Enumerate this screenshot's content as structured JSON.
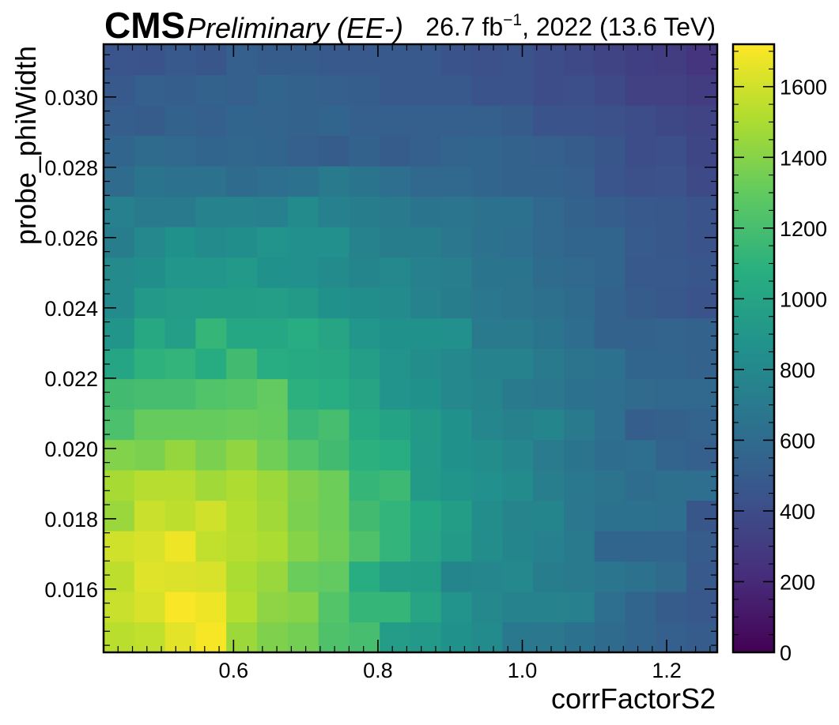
{
  "header": {
    "experiment": "CMS",
    "status": "Preliminary (EE-)",
    "lumi_value": "26.7 fb",
    "lumi_exponent": "−1",
    "lumi_suffix": ", 2022 (13.6 TeV)"
  },
  "chart_data": {
    "type": "heatmap",
    "xlabel": "corrFactorS2",
    "ylabel": "probe_phiWidth",
    "x_range": [
      0.42,
      1.27
    ],
    "y_range": [
      0.0142,
      0.0315
    ],
    "x_ticks": [
      "0.6",
      "0.8",
      "1.0",
      "1.2"
    ],
    "y_ticks": [
      "0.016",
      "0.018",
      "0.020",
      "0.022",
      "0.024",
      "0.026",
      "0.028",
      "0.030"
    ],
    "x_nbins": 20,
    "y_nbins": 20,
    "colorbar": {
      "colormap": "viridis",
      "range": [
        0,
        1720
      ],
      "ticks": [
        "0",
        "200",
        "400",
        "600",
        "800",
        "1000",
        "1200",
        "1400",
        "1600"
      ]
    },
    "z_rows_bottom_to_top": [
      [
        1540,
        1560,
        1650,
        1700,
        1460,
        1380,
        1350,
        1230,
        1200,
        940,
        920,
        860,
        820,
        690,
        680,
        640,
        600,
        560,
        520,
        500
      ],
      [
        1580,
        1620,
        1710,
        1680,
        1520,
        1420,
        1400,
        1250,
        1130,
        1130,
        1000,
        880,
        800,
        760,
        760,
        740,
        620,
        560,
        500,
        470
      ],
      [
        1550,
        1640,
        1630,
        1620,
        1500,
        1450,
        1320,
        1300,
        1060,
        960,
        950,
        780,
        790,
        800,
        720,
        700,
        670,
        640,
        590,
        480
      ],
      [
        1600,
        1620,
        1680,
        1560,
        1530,
        1500,
        1400,
        1340,
        1230,
        1120,
        1000,
        930,
        830,
        780,
        740,
        700,
        560,
        560,
        560,
        500
      ],
      [
        1450,
        1580,
        1550,
        1600,
        1520,
        1470,
        1370,
        1330,
        1180,
        1120,
        1020,
        950,
        830,
        770,
        780,
        680,
        640,
        640,
        620,
        460
      ],
      [
        1490,
        1530,
        1530,
        1470,
        1510,
        1460,
        1380,
        1330,
        1130,
        1160,
        930,
        890,
        850,
        820,
        730,
        690,
        650,
        610,
        630,
        620
      ],
      [
        1390,
        1370,
        1440,
        1370,
        1430,
        1340,
        1250,
        1180,
        1090,
        1060,
        920,
        860,
        830,
        790,
        710,
        660,
        610,
        620,
        550,
        520
      ],
      [
        1220,
        1310,
        1310,
        1310,
        1320,
        1310,
        1150,
        1200,
        1040,
        990,
        930,
        860,
        790,
        750,
        780,
        700,
        620,
        510,
        530,
        550
      ],
      [
        1180,
        1200,
        1200,
        1240,
        1260,
        1300,
        1090,
        1060,
        1000,
        880,
        870,
        800,
        770,
        700,
        680,
        640,
        620,
        590,
        580,
        580
      ],
      [
        1010,
        1100,
        1120,
        1050,
        1180,
        1060,
        1040,
        1030,
        960,
        880,
        830,
        800,
        760,
        760,
        700,
        650,
        640,
        560,
        560,
        540
      ],
      [
        890,
        1030,
        960,
        1130,
        1020,
        1020,
        1060,
        1000,
        900,
        860,
        860,
        850,
        700,
        700,
        660,
        610,
        540,
        540,
        550,
        540
      ],
      [
        820,
        920,
        940,
        950,
        950,
        960,
        930,
        860,
        840,
        820,
        760,
        720,
        680,
        650,
        630,
        600,
        540,
        500,
        470,
        440
      ],
      [
        810,
        840,
        900,
        900,
        920,
        870,
        850,
        820,
        780,
        800,
        740,
        730,
        660,
        660,
        600,
        580,
        560,
        480,
        480,
        460
      ],
      [
        720,
        800,
        860,
        820,
        840,
        880,
        850,
        850,
        760,
        720,
        720,
        680,
        640,
        620,
        580,
        560,
        560,
        490,
        470,
        440
      ],
      [
        740,
        700,
        700,
        760,
        760,
        740,
        820,
        740,
        720,
        700,
        660,
        670,
        640,
        640,
        580,
        540,
        510,
        480,
        470,
        440
      ],
      [
        600,
        660,
        640,
        640,
        600,
        620,
        640,
        700,
        660,
        620,
        580,
        580,
        560,
        540,
        540,
        520,
        450,
        420,
        430,
        380
      ],
      [
        560,
        600,
        580,
        560,
        570,
        560,
        520,
        500,
        540,
        500,
        520,
        550,
        560,
        540,
        520,
        500,
        460,
        400,
        410,
        360
      ],
      [
        510,
        500,
        540,
        520,
        560,
        550,
        540,
        560,
        520,
        520,
        520,
        520,
        520,
        500,
        440,
        440,
        420,
        400,
        370,
        340
      ],
      [
        480,
        520,
        510,
        540,
        520,
        560,
        540,
        520,
        510,
        480,
        480,
        480,
        440,
        440,
        400,
        410,
        380,
        330,
        330,
        300
      ],
      [
        450,
        440,
        480,
        460,
        520,
        500,
        500,
        480,
        480,
        480,
        480,
        440,
        420,
        440,
        400,
        380,
        340,
        320,
        300,
        260
      ]
    ]
  }
}
